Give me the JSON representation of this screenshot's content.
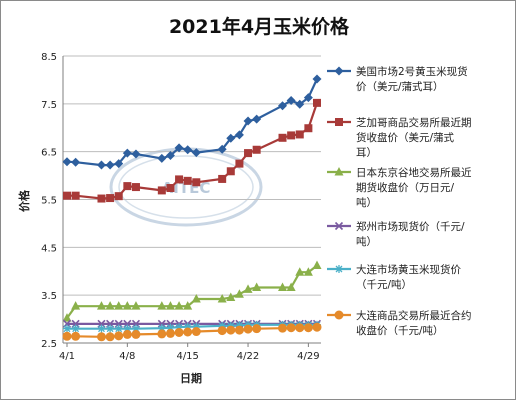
{
  "chart_data": {
    "type": "line",
    "title": "2021年4月玉米价格",
    "xlabel": "日期",
    "ylabel": "价格",
    "ylim": [
      2.5,
      8.5
    ],
    "yticks": [
      "2.5",
      "3.5",
      "4.5",
      "5.5",
      "6.5",
      "7.5",
      "8.5"
    ],
    "xlim": [
      1,
      30
    ],
    "xticks": [
      {
        "x": 1,
        "label": "4/1"
      },
      {
        "x": 8,
        "label": "4/8"
      },
      {
        "x": 15,
        "label": "4/15"
      },
      {
        "x": 22,
        "label": "4/22"
      },
      {
        "x": 29,
        "label": "4/29"
      }
    ],
    "grid": true,
    "legend_position": "right",
    "watermark": "AITEC",
    "series": [
      {
        "name": "美国市场2号黄玉米现货价（美元/蒲式耳）",
        "color": "#2e5f9e",
        "marker": "diamond",
        "points": [
          [
            1,
            6.29
          ],
          [
            2,
            6.28
          ],
          [
            5,
            6.22
          ],
          [
            6,
            6.22
          ],
          [
            7,
            6.25
          ],
          [
            8,
            6.47
          ],
          [
            9,
            6.45
          ],
          [
            12,
            6.36
          ],
          [
            13,
            6.42
          ],
          [
            14,
            6.58
          ],
          [
            15,
            6.54
          ],
          [
            16,
            6.48
          ],
          [
            19,
            6.55
          ],
          [
            20,
            6.78
          ],
          [
            21,
            6.85
          ],
          [
            22,
            7.14
          ],
          [
            23,
            7.18
          ],
          [
            26,
            7.46
          ],
          [
            27,
            7.57
          ],
          [
            28,
            7.49
          ],
          [
            29,
            7.63
          ],
          [
            30,
            8.02
          ]
        ]
      },
      {
        "name": "芝加哥商品交易所最近期货收盘价（美元/蒲式耳）",
        "color": "#a83a38",
        "marker": "square",
        "points": [
          [
            1,
            5.58
          ],
          [
            2,
            5.58
          ],
          [
            5,
            5.52
          ],
          [
            6,
            5.53
          ],
          [
            7,
            5.57
          ],
          [
            8,
            5.78
          ],
          [
            9,
            5.76
          ],
          [
            12,
            5.69
          ],
          [
            13,
            5.74
          ],
          [
            14,
            5.92
          ],
          [
            15,
            5.89
          ],
          [
            16,
            5.86
          ],
          [
            19,
            5.93
          ],
          [
            20,
            6.09
          ],
          [
            21,
            6.25
          ],
          [
            22,
            6.47
          ],
          [
            23,
            6.54
          ],
          [
            26,
            6.79
          ],
          [
            27,
            6.84
          ],
          [
            28,
            6.86
          ],
          [
            29,
            6.99
          ],
          [
            30,
            7.52
          ]
        ]
      },
      {
        "name": "日本东京谷地交易所最近期货收盘价（万日元/吨）",
        "color": "#8ab04a",
        "marker": "triangle",
        "points": [
          [
            1,
            3.02
          ],
          [
            2,
            3.27
          ],
          [
            5,
            3.27
          ],
          [
            6,
            3.27
          ],
          [
            7,
            3.27
          ],
          [
            8,
            3.27
          ],
          [
            9,
            3.27
          ],
          [
            12,
            3.27
          ],
          [
            13,
            3.27
          ],
          [
            14,
            3.27
          ],
          [
            15,
            3.27
          ],
          [
            16,
            3.42
          ],
          [
            19,
            3.42
          ],
          [
            20,
            3.45
          ],
          [
            21,
            3.52
          ],
          [
            22,
            3.62
          ],
          [
            23,
            3.66
          ],
          [
            26,
            3.66
          ],
          [
            27,
            3.66
          ],
          [
            28,
            3.98
          ],
          [
            29,
            3.98
          ],
          [
            30,
            4.12
          ]
        ]
      },
      {
        "name": "郑州市场现货价（千元/吨）",
        "color": "#7a5aa0",
        "marker": "x",
        "points": [
          [
            1,
            2.9
          ],
          [
            2,
            2.9
          ],
          [
            5,
            2.9
          ],
          [
            6,
            2.9
          ],
          [
            7,
            2.9
          ],
          [
            8,
            2.9
          ],
          [
            9,
            2.9
          ],
          [
            12,
            2.9
          ],
          [
            13,
            2.9
          ],
          [
            14,
            2.9
          ],
          [
            15,
            2.9
          ],
          [
            16,
            2.9
          ],
          [
            19,
            2.9
          ],
          [
            20,
            2.9
          ],
          [
            21,
            2.9
          ],
          [
            22,
            2.9
          ],
          [
            23,
            2.9
          ],
          [
            26,
            2.9
          ],
          [
            27,
            2.9
          ],
          [
            28,
            2.9
          ],
          [
            29,
            2.9
          ],
          [
            30,
            2.9
          ]
        ]
      },
      {
        "name": "大连市场黄玉米现货价（千元/吨）",
        "color": "#4ab0c8",
        "marker": "star",
        "points": [
          [
            1,
            2.8
          ],
          [
            2,
            2.8
          ],
          [
            5,
            2.8
          ],
          [
            6,
            2.8
          ],
          [
            7,
            2.8
          ],
          [
            8,
            2.8
          ],
          [
            9,
            2.8
          ],
          [
            12,
            2.81
          ],
          [
            13,
            2.82
          ],
          [
            14,
            2.83
          ],
          [
            15,
            2.84
          ],
          [
            16,
            2.84
          ],
          [
            19,
            2.86
          ],
          [
            20,
            2.86
          ],
          [
            21,
            2.87
          ],
          [
            22,
            2.88
          ],
          [
            23,
            2.88
          ],
          [
            26,
            2.88
          ],
          [
            27,
            2.88
          ],
          [
            28,
            2.88
          ],
          [
            29,
            2.88
          ],
          [
            30,
            2.88
          ]
        ]
      },
      {
        "name": "大连商品交易所最近合约收盘价（千元/吨）",
        "color": "#e58a2a",
        "marker": "circle",
        "points": [
          [
            1,
            2.64
          ],
          [
            2,
            2.64
          ],
          [
            5,
            2.63
          ],
          [
            6,
            2.63
          ],
          [
            7,
            2.65
          ],
          [
            8,
            2.68
          ],
          [
            9,
            2.68
          ],
          [
            12,
            2.69
          ],
          [
            13,
            2.7
          ],
          [
            14,
            2.72
          ],
          [
            15,
            2.73
          ],
          [
            16,
            2.74
          ],
          [
            19,
            2.76
          ],
          [
            20,
            2.77
          ],
          [
            21,
            2.77
          ],
          [
            22,
            2.79
          ],
          [
            23,
            2.8
          ],
          [
            26,
            2.81
          ],
          [
            27,
            2.82
          ],
          [
            28,
            2.82
          ],
          [
            29,
            2.82
          ],
          [
            30,
            2.83
          ]
        ]
      }
    ],
    "legend": [
      {
        "lines": [
          "美国市场2号黄玉米现货",
          "价（美元/蒲式耳）"
        ]
      },
      {
        "lines": [
          "芝加哥商品交易所最近期",
          "货收盘价（美元/蒲式",
          "耳）"
        ]
      },
      {
        "lines": [
          "日本东京谷地交易所最近",
          "期货收盘价（万日元/",
          "吨）"
        ]
      },
      {
        "lines": [
          "郑州市场现货价（千元/",
          "吨）"
        ]
      },
      {
        "lines": [
          "大连市场黄玉米现货价",
          "（千元/吨）"
        ]
      },
      {
        "lines": [
          "大连商品交易所最近合约",
          "收盘价（千元/吨）"
        ]
      }
    ]
  }
}
